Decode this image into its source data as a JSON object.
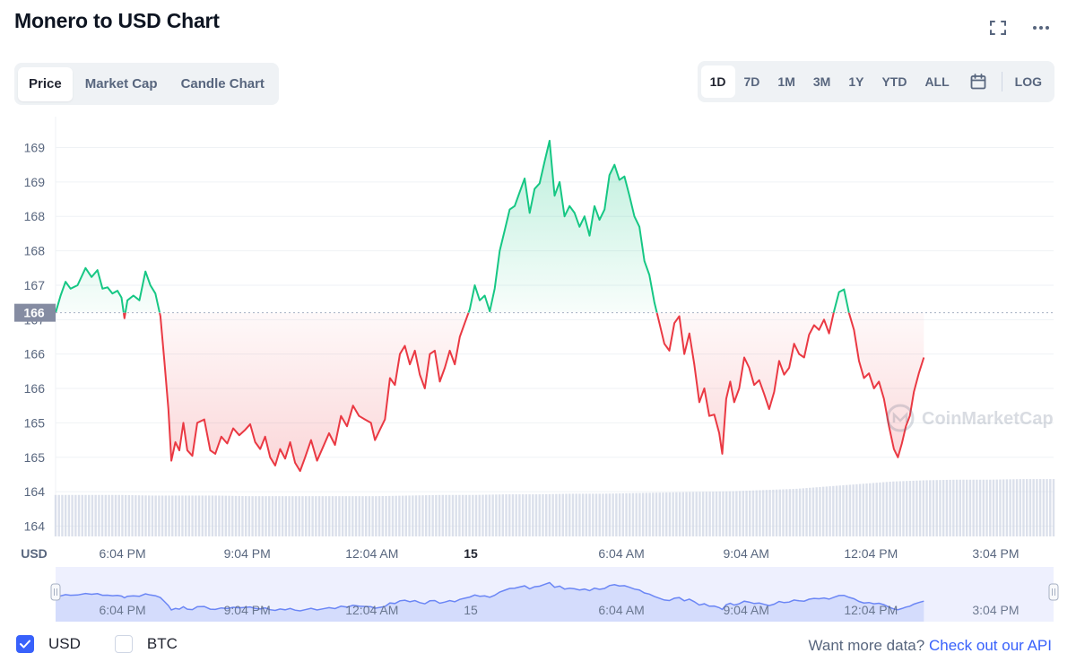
{
  "header": {
    "title": "Monero to USD Chart",
    "fullscreen_icon": "fullscreen-icon",
    "more_icon": "more-icon"
  },
  "chart_tabs": [
    {
      "label": "Price",
      "active": true
    },
    {
      "label": "Market Cap",
      "active": false
    },
    {
      "label": "Candle Chart",
      "active": false
    }
  ],
  "ranges": [
    {
      "label": "1D",
      "active": true
    },
    {
      "label": "7D",
      "active": false
    },
    {
      "label": "1M",
      "active": false
    },
    {
      "label": "3M",
      "active": false
    },
    {
      "label": "1Y",
      "active": false
    },
    {
      "label": "YTD",
      "active": false
    },
    {
      "label": "ALL",
      "active": false
    }
  ],
  "range_calendar_icon": "calendar-icon",
  "log_label": "LOG",
  "legend": [
    {
      "label": "USD",
      "checked": true
    },
    {
      "label": "BTC",
      "checked": false
    }
  ],
  "api_prompt": {
    "text": "Want more data?",
    "link": "Check out our API"
  },
  "watermark": "CoinMarketCap",
  "colors": {
    "up": "#16c784",
    "down": "#ea3943",
    "accent": "#3861fb",
    "grid": "#eff2f5",
    "volume": "#cfd6e4"
  },
  "chart_data": {
    "type": "area",
    "currency_label": "USD",
    "baseline_value": 166.6,
    "baseline_label": "166",
    "ylim": [
      163.35,
      169.45
    ],
    "y_ticks": [
      {
        "label": "169",
        "value": 169.0
      },
      {
        "label": "169",
        "value": 168.5
      },
      {
        "label": "168",
        "value": 168.0
      },
      {
        "label": "168",
        "value": 167.5
      },
      {
        "label": "167",
        "value": 167.0
      },
      {
        "label": "167",
        "value": 166.5
      },
      {
        "label": "166",
        "value": 166.0
      },
      {
        "label": "166",
        "value": 165.5
      },
      {
        "label": "165",
        "value": 165.0
      },
      {
        "label": "165",
        "value": 164.5
      },
      {
        "label": "164",
        "value": 164.0
      },
      {
        "label": "164",
        "value": 163.5
      }
    ],
    "x_ticks": [
      {
        "label": "6:04 PM",
        "t": 0.067
      },
      {
        "label": "9:04 PM",
        "t": 0.192
      },
      {
        "label": "12:04 AM",
        "t": 0.317
      },
      {
        "label": "15",
        "t": 0.416,
        "bold": true
      },
      {
        "label": "6:04 AM",
        "t": 0.567
      },
      {
        "label": "9:04 AM",
        "t": 0.692
      },
      {
        "label": "12:04 PM",
        "t": 0.817
      },
      {
        "label": "3:04 PM",
        "t": 0.942
      }
    ],
    "series": [
      {
        "name": "USD",
        "points": [
          [
            0.0,
            166.6
          ],
          [
            0.005,
            166.85
          ],
          [
            0.01,
            167.05
          ],
          [
            0.015,
            166.95
          ],
          [
            0.022,
            167.0
          ],
          [
            0.03,
            167.25
          ],
          [
            0.036,
            167.12
          ],
          [
            0.042,
            167.22
          ],
          [
            0.047,
            166.95
          ],
          [
            0.052,
            166.97
          ],
          [
            0.057,
            166.88
          ],
          [
            0.062,
            166.92
          ],
          [
            0.066,
            166.82
          ],
          [
            0.069,
            166.52
          ],
          [
            0.072,
            166.78
          ],
          [
            0.078,
            166.85
          ],
          [
            0.084,
            166.78
          ],
          [
            0.09,
            167.2
          ],
          [
            0.095,
            167.0
          ],
          [
            0.1,
            166.88
          ],
          [
            0.105,
            166.55
          ],
          [
            0.109,
            165.9
          ],
          [
            0.113,
            165.2
          ],
          [
            0.116,
            164.45
          ],
          [
            0.12,
            164.72
          ],
          [
            0.124,
            164.6
          ],
          [
            0.128,
            165.0
          ],
          [
            0.132,
            164.6
          ],
          [
            0.137,
            164.52
          ],
          [
            0.142,
            165.0
          ],
          [
            0.149,
            165.05
          ],
          [
            0.155,
            164.6
          ],
          [
            0.16,
            164.55
          ],
          [
            0.166,
            164.8
          ],
          [
            0.172,
            164.7
          ],
          [
            0.178,
            164.92
          ],
          [
            0.184,
            164.82
          ],
          [
            0.19,
            164.9
          ],
          [
            0.195,
            164.98
          ],
          [
            0.2,
            164.72
          ],
          [
            0.205,
            164.62
          ],
          [
            0.21,
            164.8
          ],
          [
            0.215,
            164.5
          ],
          [
            0.22,
            164.38
          ],
          [
            0.225,
            164.62
          ],
          [
            0.23,
            164.48
          ],
          [
            0.235,
            164.72
          ],
          [
            0.24,
            164.42
          ],
          [
            0.245,
            164.3
          ],
          [
            0.25,
            164.5
          ],
          [
            0.256,
            164.75
          ],
          [
            0.262,
            164.45
          ],
          [
            0.268,
            164.65
          ],
          [
            0.274,
            164.85
          ],
          [
            0.28,
            164.68
          ],
          [
            0.286,
            165.1
          ],
          [
            0.292,
            164.95
          ],
          [
            0.298,
            165.25
          ],
          [
            0.304,
            165.1
          ],
          [
            0.31,
            165.05
          ],
          [
            0.316,
            165.0
          ],
          [
            0.32,
            164.75
          ],
          [
            0.325,
            164.9
          ],
          [
            0.33,
            165.05
          ],
          [
            0.335,
            165.65
          ],
          [
            0.34,
            165.55
          ],
          [
            0.345,
            166.0
          ],
          [
            0.35,
            166.12
          ],
          [
            0.355,
            165.85
          ],
          [
            0.36,
            166.05
          ],
          [
            0.365,
            165.7
          ],
          [
            0.37,
            165.5
          ],
          [
            0.375,
            166.0
          ],
          [
            0.38,
            166.05
          ],
          [
            0.385,
            165.6
          ],
          [
            0.39,
            165.8
          ],
          [
            0.395,
            166.05
          ],
          [
            0.4,
            165.85
          ],
          [
            0.405,
            166.25
          ],
          [
            0.41,
            166.45
          ],
          [
            0.415,
            166.65
          ],
          [
            0.42,
            167.0
          ],
          [
            0.425,
            166.78
          ],
          [
            0.43,
            166.85
          ],
          [
            0.435,
            166.62
          ],
          [
            0.44,
            166.95
          ],
          [
            0.445,
            167.5
          ],
          [
            0.45,
            167.8
          ],
          [
            0.455,
            168.1
          ],
          [
            0.46,
            168.15
          ],
          [
            0.465,
            168.35
          ],
          [
            0.47,
            168.55
          ],
          [
            0.475,
            168.05
          ],
          [
            0.48,
            168.4
          ],
          [
            0.485,
            168.48
          ],
          [
            0.49,
            168.8
          ],
          [
            0.495,
            169.1
          ],
          [
            0.5,
            168.3
          ],
          [
            0.505,
            168.5
          ],
          [
            0.51,
            168.0
          ],
          [
            0.515,
            168.15
          ],
          [
            0.52,
            168.05
          ],
          [
            0.525,
            167.85
          ],
          [
            0.53,
            168.0
          ],
          [
            0.535,
            167.72
          ],
          [
            0.54,
            168.15
          ],
          [
            0.545,
            167.95
          ],
          [
            0.55,
            168.1
          ],
          [
            0.555,
            168.6
          ],
          [
            0.56,
            168.75
          ],
          [
            0.565,
            168.53
          ],
          [
            0.57,
            168.58
          ],
          [
            0.575,
            168.3
          ],
          [
            0.58,
            168.0
          ],
          [
            0.585,
            167.85
          ],
          [
            0.59,
            167.35
          ],
          [
            0.595,
            167.15
          ],
          [
            0.6,
            166.75
          ],
          [
            0.605,
            166.45
          ],
          [
            0.61,
            166.15
          ],
          [
            0.615,
            166.05
          ],
          [
            0.62,
            166.45
          ],
          [
            0.625,
            166.55
          ],
          [
            0.63,
            166.0
          ],
          [
            0.635,
            166.3
          ],
          [
            0.64,
            165.85
          ],
          [
            0.645,
            165.3
          ],
          [
            0.65,
            165.5
          ],
          [
            0.655,
            165.1
          ],
          [
            0.66,
            165.12
          ],
          [
            0.665,
            164.85
          ],
          [
            0.668,
            164.55
          ],
          [
            0.672,
            165.35
          ],
          [
            0.676,
            165.6
          ],
          [
            0.68,
            165.3
          ],
          [
            0.685,
            165.5
          ],
          [
            0.69,
            165.95
          ],
          [
            0.695,
            165.8
          ],
          [
            0.7,
            165.55
          ],
          [
            0.705,
            165.62
          ],
          [
            0.71,
            165.42
          ],
          [
            0.715,
            165.2
          ],
          [
            0.72,
            165.45
          ],
          [
            0.725,
            165.9
          ],
          [
            0.73,
            165.7
          ],
          [
            0.735,
            165.8
          ],
          [
            0.74,
            166.15
          ],
          [
            0.745,
            166.0
          ],
          [
            0.75,
            165.95
          ],
          [
            0.755,
            166.28
          ],
          [
            0.76,
            166.42
          ],
          [
            0.765,
            166.35
          ],
          [
            0.77,
            166.5
          ],
          [
            0.775,
            166.3
          ],
          [
            0.78,
            166.62
          ],
          [
            0.785,
            166.9
          ],
          [
            0.79,
            166.94
          ],
          [
            0.795,
            166.6
          ],
          [
            0.8,
            166.35
          ],
          [
            0.805,
            165.9
          ],
          [
            0.81,
            165.65
          ],
          [
            0.815,
            165.72
          ],
          [
            0.82,
            165.5
          ],
          [
            0.825,
            165.6
          ],
          [
            0.83,
            165.35
          ],
          [
            0.835,
            164.95
          ],
          [
            0.84,
            164.62
          ],
          [
            0.844,
            164.5
          ],
          [
            0.848,
            164.7
          ],
          [
            0.852,
            164.95
          ],
          [
            0.856,
            165.1
          ],
          [
            0.86,
            165.45
          ],
          [
            0.865,
            165.72
          ],
          [
            0.87,
            165.95
          ]
        ]
      }
    ],
    "volume": {
      "name": "Volume",
      "values": [
        0.68,
        0.68,
        0.68,
        0.67,
        0.67,
        0.67,
        0.66,
        0.66,
        0.66,
        0.66,
        0.66,
        0.67,
        0.68,
        0.68,
        0.69,
        0.69,
        0.7,
        0.7,
        0.71,
        0.72,
        0.73,
        0.74,
        0.76,
        0.78,
        0.82,
        0.86,
        0.9,
        0.92,
        0.93,
        0.93,
        0.94,
        0.94
      ]
    },
    "navigator": {
      "x_ticks": [
        {
          "label": "6:04 PM",
          "t": 0.067
        },
        {
          "label": "9:04 PM",
          "t": 0.192
        },
        {
          "label": "12:04 AM",
          "t": 0.317
        },
        {
          "label": "15",
          "t": 0.416
        },
        {
          "label": "6:04 AM",
          "t": 0.567
        },
        {
          "label": "9:04 AM",
          "t": 0.692
        },
        {
          "label": "12:04 PM",
          "t": 0.817
        },
        {
          "label": "3:04 PM",
          "t": 0.942
        }
      ]
    }
  }
}
